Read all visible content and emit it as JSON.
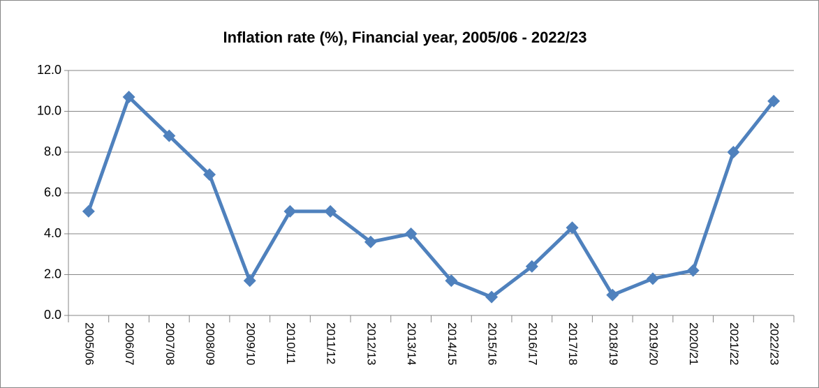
{
  "chart_data": {
    "type": "line",
    "title": "Inflation rate (%), Financial year, 2005/06 - 2022/23",
    "categories": [
      "2005/06",
      "2006/07",
      "2007/08",
      "2008/09",
      "2009/10",
      "2010/11",
      "2011/12",
      "2012/13",
      "2013/14",
      "2014/15",
      "2015/16",
      "2016/17",
      "2017/18",
      "2018/19",
      "2019/20",
      "2020/21",
      "2021/22",
      "2022/23"
    ],
    "series": [
      {
        "name": "Inflation rate (%)",
        "color": "#4f81bd",
        "values": [
          5.1,
          10.7,
          8.8,
          6.9,
          1.7,
          5.1,
          5.1,
          3.6,
          4.0,
          1.7,
          0.9,
          2.4,
          4.3,
          1.0,
          1.8,
          2.2,
          8.0,
          10.5
        ]
      }
    ],
    "ylim": [
      0,
      12
    ],
    "yticks": [
      {
        "value": 0,
        "label": "0.0"
      },
      {
        "value": 2,
        "label": "2.0"
      },
      {
        "value": 4,
        "label": "4.0"
      },
      {
        "value": 6,
        "label": "6.0"
      },
      {
        "value": 8,
        "label": "8.0"
      },
      {
        "value": 10,
        "label": "10.0"
      },
      {
        "value": 12,
        "label": "12.0"
      }
    ],
    "grid": true
  }
}
